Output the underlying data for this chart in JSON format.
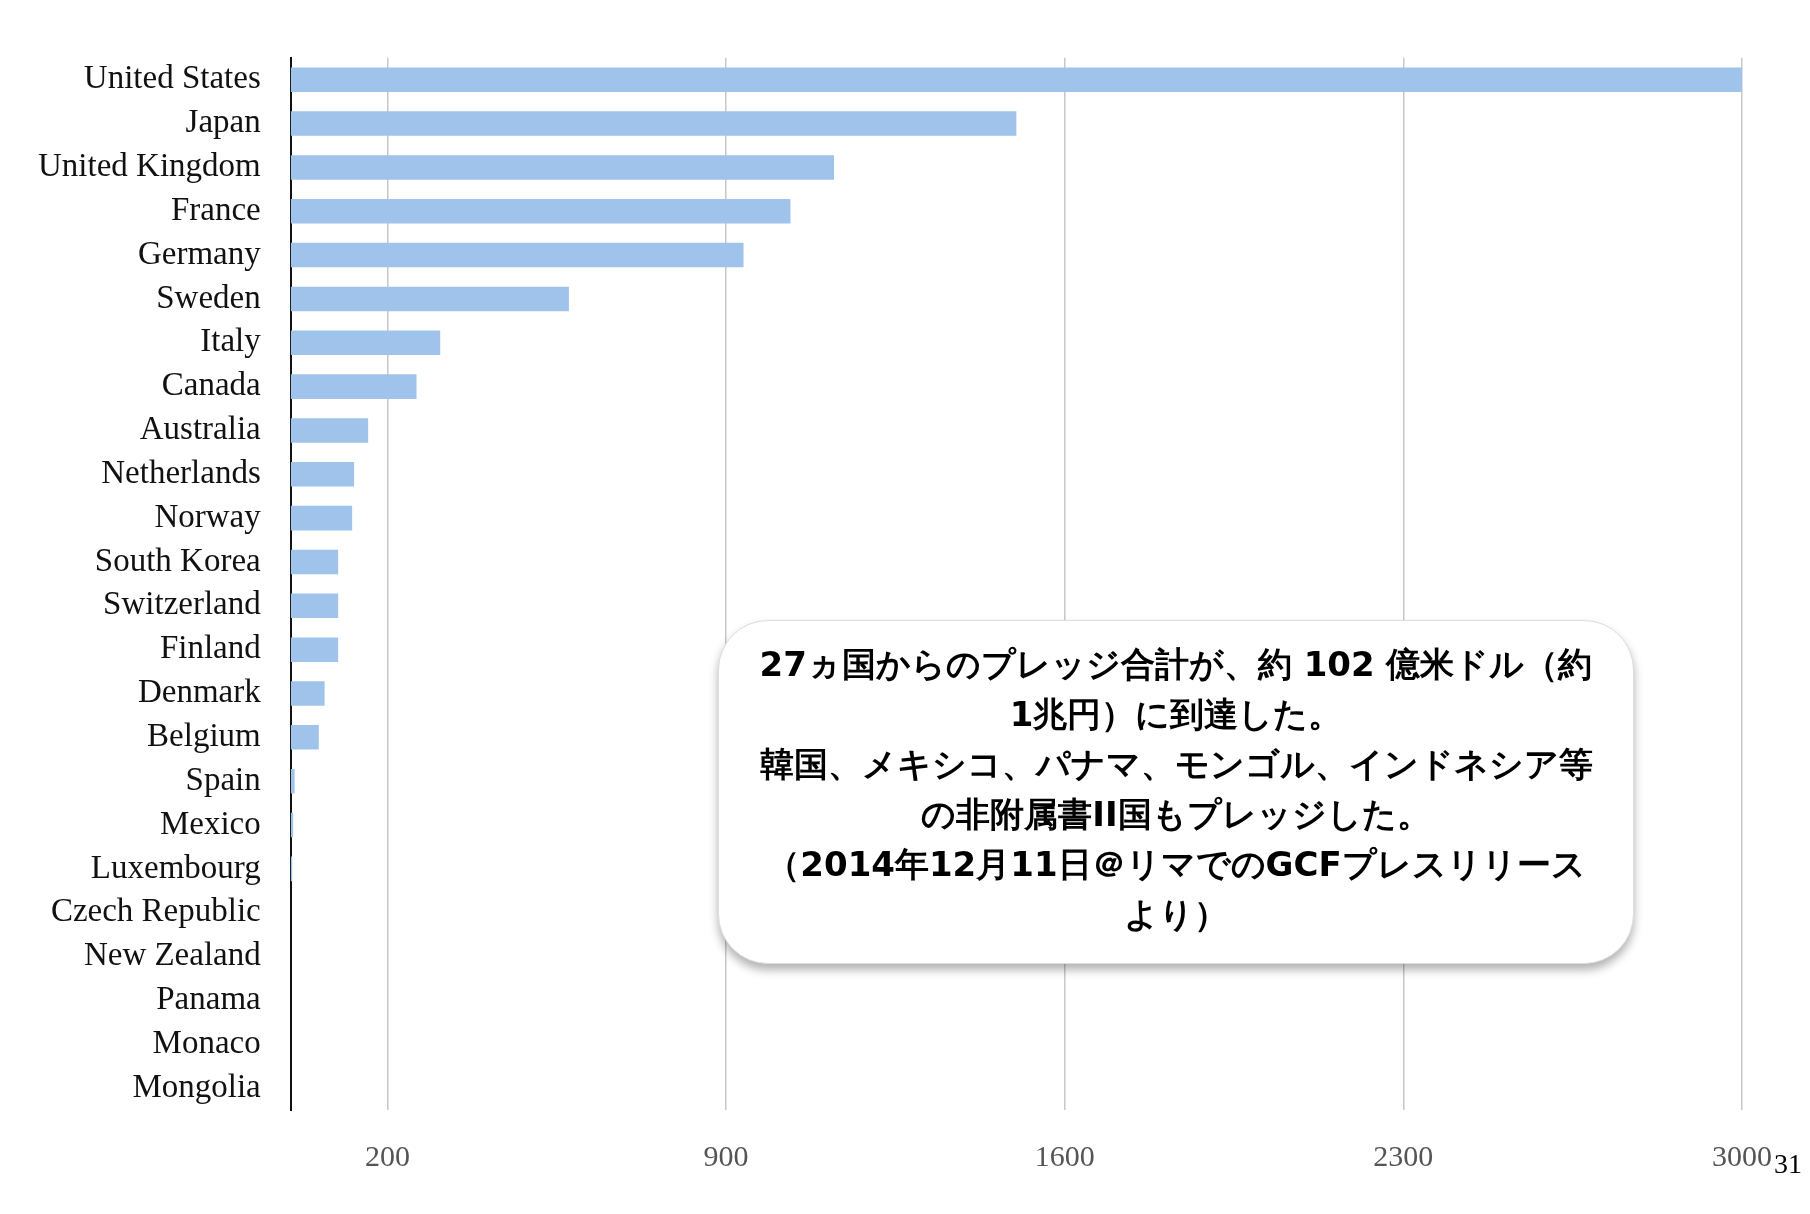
{
  "chart_data": {
    "type": "bar",
    "orientation": "horizontal",
    "categories": [
      "United States",
      "Japan",
      "United Kingdom",
      "France",
      "Germany",
      "Sweden",
      "Italy",
      "Canada",
      "Australia",
      "Netherlands",
      "Norway",
      "South Korea",
      "Switzerland",
      "Finland",
      "Denmark",
      "Belgium",
      "Spain",
      "Mexico",
      "Luxembourg",
      "Czech Republic",
      "New Zealand",
      "Panama",
      "Monaco",
      "Mongolia"
    ],
    "values": [
      3000,
      1500,
      1123,
      1033,
      936,
      575,
      309,
      260,
      160,
      131,
      127,
      98,
      98,
      98,
      70,
      58,
      8,
      5,
      3,
      null,
      0,
      0,
      0,
      0
    ],
    "color": "#9fc3ea",
    "xlim": [
      0,
      3000
    ],
    "xticks": [
      200,
      900,
      1600,
      2300,
      3000
    ],
    "grid": "x",
    "annotations": [
      "27ヵ国からのプレッジ合計が、約 102 億米ドル（約1兆円）に到達した。",
      "韓国、メキシコ、パナマ、モンゴル、インドネシア等の非附属書II国もプレッジした。",
      "（2014年12月11日＠リマでのGCFプレスリリースより）",
      "31"
    ]
  }
}
